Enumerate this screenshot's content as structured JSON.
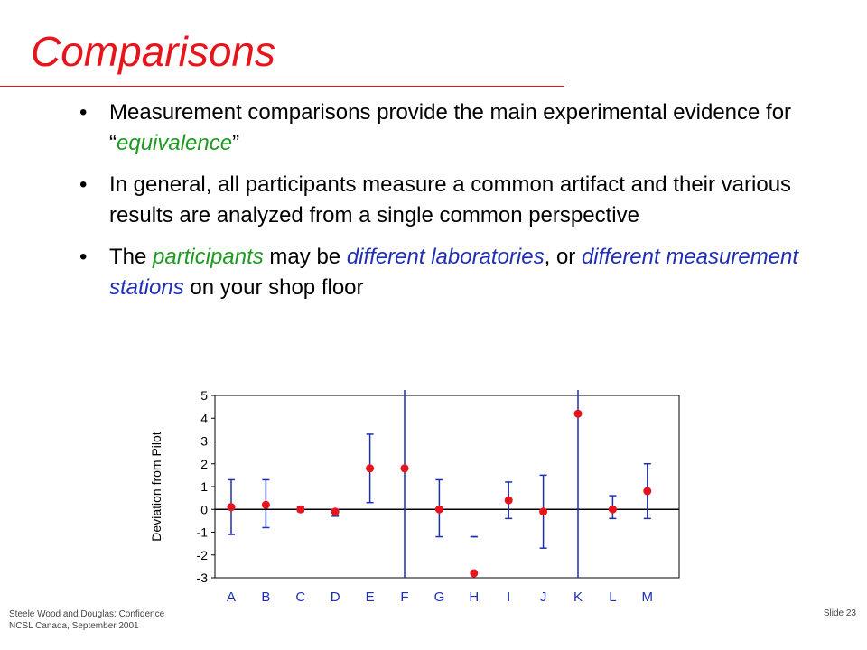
{
  "slide": {
    "title": "Comparisons",
    "bullets": [
      {
        "parts": [
          {
            "text": "Measurement comparisons provide the main experimental evidence for “"
          },
          {
            "text": "equivalence",
            "style": "green"
          },
          {
            "text": "”"
          }
        ]
      },
      {
        "parts": [
          {
            "text": "In general, all participants measure a common artifact and their various results are analyzed from a single common perspective"
          }
        ]
      },
      {
        "parts": [
          {
            "text": "The "
          },
          {
            "text": "participants",
            "style": "green"
          },
          {
            "text": " may be "
          },
          {
            "text": "different laboratories",
            "style": "blue"
          },
          {
            "text": ", or "
          },
          {
            "text": "different measurement stations",
            "style": "blue"
          },
          {
            "text": " on your shop floor"
          }
        ]
      }
    ],
    "footer": {
      "line1": "Steele Wood and Douglas: Confidence",
      "line2": "NCSL Canada, September 2001",
      "slide_number": "Slide 23"
    }
  },
  "colors": {
    "title": "#e8141c",
    "green": "#1e9a22",
    "blue": "#1f2fb4",
    "point": "#e8141c",
    "errorbar": "#1f2fb4"
  },
  "chart_data": {
    "type": "scatter",
    "ylabel": "Deviation from Pilot",
    "ylim": [
      -3,
      5
    ],
    "yticks": [
      5,
      4,
      3,
      2,
      1,
      0,
      -1,
      -2,
      -3
    ],
    "grid": false,
    "categories": [
      "A",
      "B",
      "C",
      "D",
      "E",
      "F",
      "G",
      "H",
      "I",
      "J",
      "K",
      "L",
      "M"
    ],
    "values": [
      0.1,
      0.2,
      0.0,
      -0.1,
      1.8,
      1.8,
      0.0,
      -2.8,
      0.4,
      -0.1,
      4.2,
      0.0,
      0.8
    ],
    "error_low": [
      -1.1,
      -0.8,
      -0.1,
      -0.3,
      0.3,
      -3.0,
      -1.2,
      -1.2,
      -0.4,
      -1.7,
      -3.0,
      -0.4,
      -0.4
    ],
    "error_high": [
      1.3,
      1.3,
      0.1,
      0.0,
      3.3,
      5.0,
      1.3,
      -1.2,
      1.2,
      1.5,
      5.0,
      0.6,
      2.0
    ]
  }
}
